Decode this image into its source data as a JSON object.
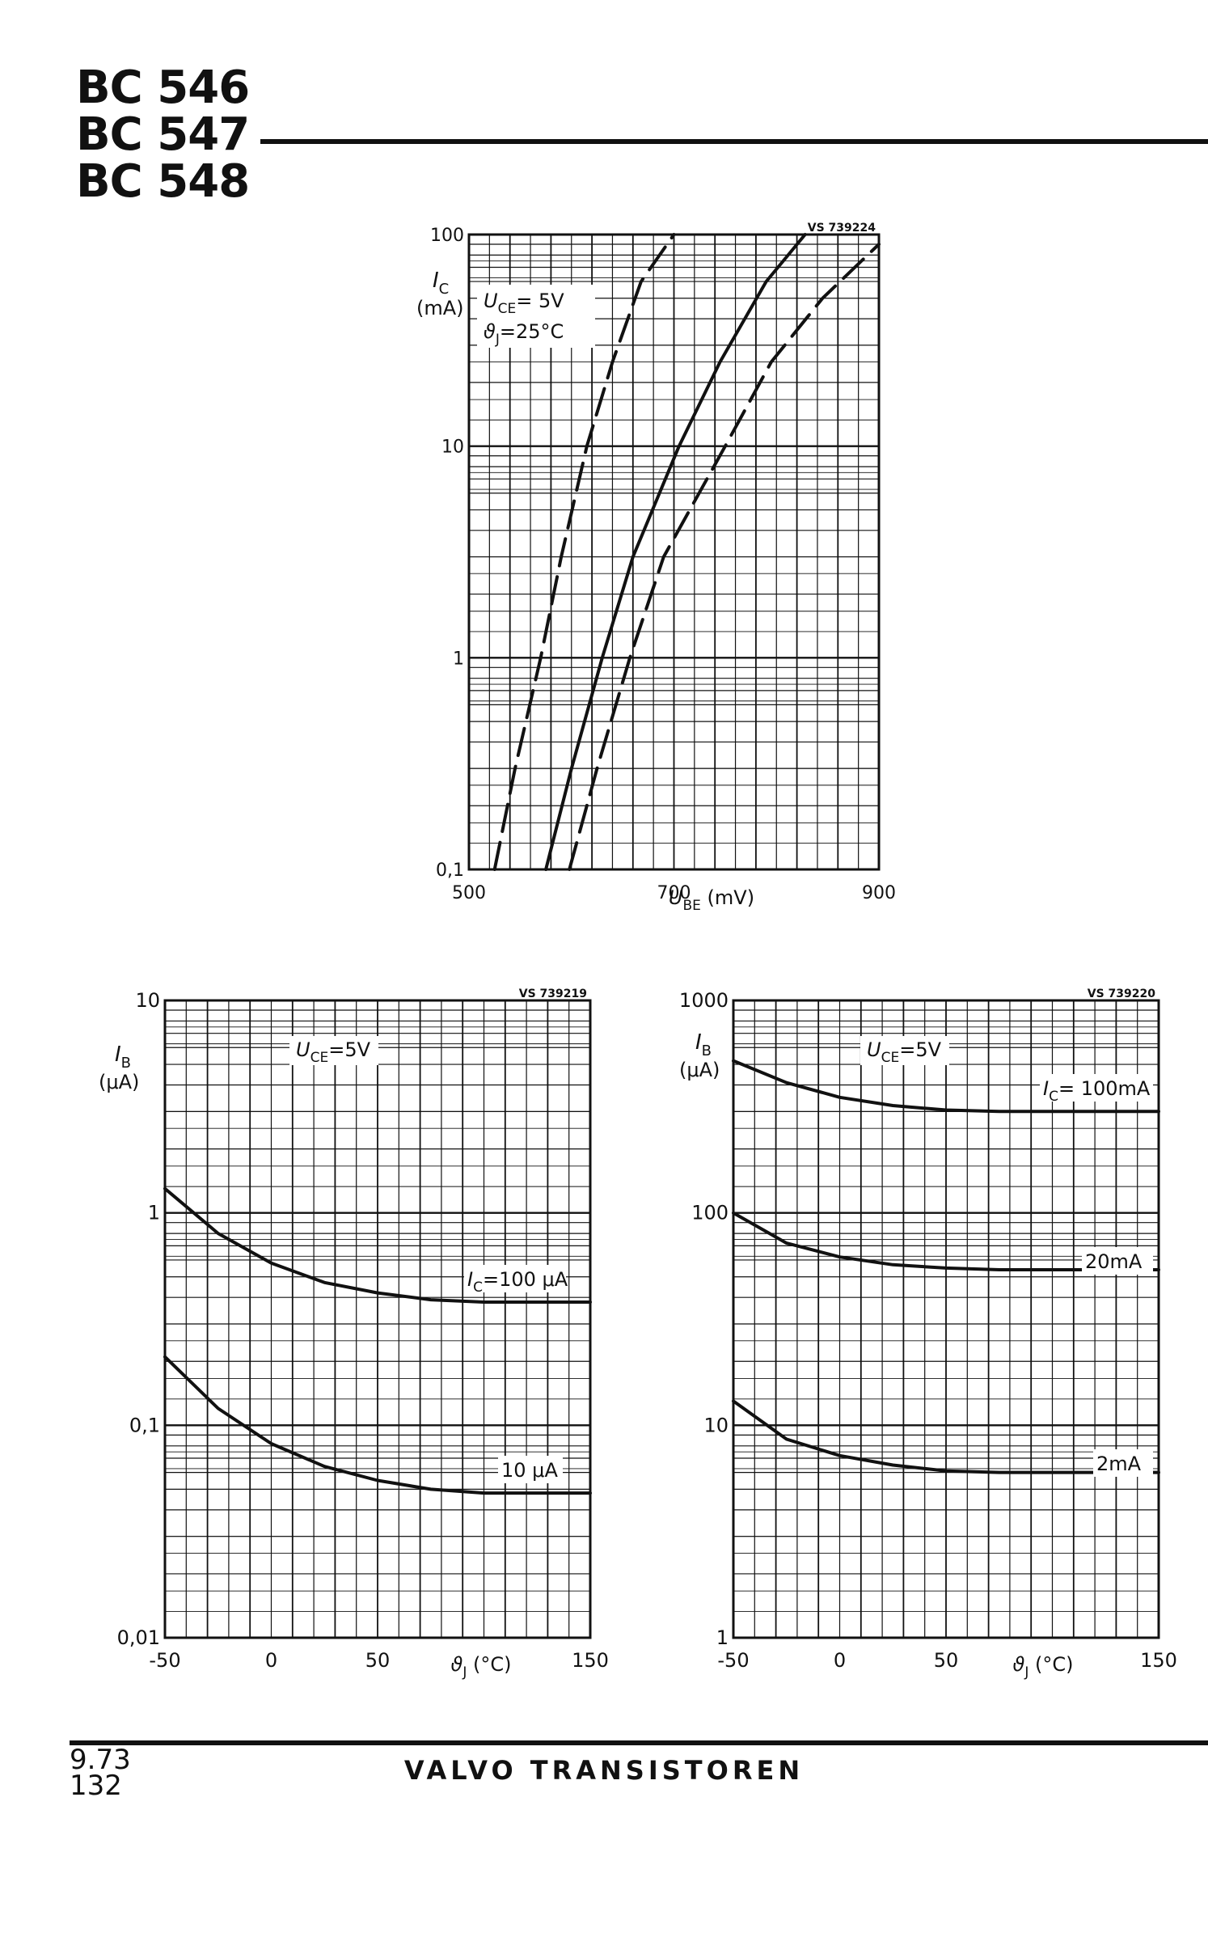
{
  "header": {
    "titles": [
      "BC 546",
      "BC 547",
      "BC 548"
    ]
  },
  "footer": {
    "date": "9.73",
    "page": "132",
    "publisher": "VALVO TRANSISTOREN"
  },
  "chart_data": [
    {
      "type": "line",
      "ref": "VS 739224",
      "yscale": "log",
      "xlim": [
        500,
        900
      ],
      "ylim": [
        0.1,
        100
      ],
      "grid": true,
      "xlabel_sym": "U",
      "xlabel_sub": "BE",
      "xlabel_unit": "(mV)",
      "ylabel_sym": "I",
      "ylabel_sub": "C",
      "ylabel_unit": "(mA)",
      "xticks": [
        "500",
        "700",
        "900"
      ],
      "yticks": [
        "0,1",
        "1",
        "10",
        "100"
      ],
      "annotations": [
        {
          "sym": "U",
          "sub": "CE",
          "text": "=  5V"
        },
        {
          "sym": "ϑ",
          "sub": "J",
          "text": "=25°C"
        }
      ],
      "series": [
        {
          "style": "dashed",
          "x": [
            525,
            545,
            570,
            590,
            615,
            640,
            668,
            700
          ],
          "y": [
            0.1,
            0.3,
            1,
            3,
            10,
            25,
            60,
            100
          ]
        },
        {
          "style": "solid",
          "x": [
            575,
            600,
            630,
            660,
            705,
            745,
            790,
            828
          ],
          "y": [
            0.1,
            0.3,
            1,
            3,
            10,
            25,
            60,
            100
          ]
        },
        {
          "style": "dashed",
          "x": [
            598,
            625,
            657,
            690,
            750,
            795,
            845,
            900
          ],
          "y": [
            0.1,
            0.3,
            1,
            3,
            10,
            25,
            50,
            90
          ]
        }
      ]
    },
    {
      "type": "line",
      "ref": "VS 739219",
      "yscale": "log",
      "xlim": [
        -50,
        150
      ],
      "ylim": [
        0.01,
        10
      ],
      "grid": true,
      "xlabel_sym": "ϑ",
      "xlabel_sub": "J",
      "xlabel_unit": "(°C)",
      "ylabel_sym": "I",
      "ylabel_sub": "B",
      "ylabel_unit": "(μA)",
      "xticks": [
        "-50",
        "0",
        "50",
        "150"
      ],
      "yticks": [
        "0,01",
        "0,1",
        "1",
        "10"
      ],
      "annotations": [
        {
          "sym": "U",
          "sub": "CE",
          "text": "=5V"
        }
      ],
      "series": [
        {
          "label_sym": "I",
          "label_sub": "C",
          "label": "=100 μA",
          "x": [
            -50,
            -25,
            0,
            25,
            50,
            75,
            100,
            125,
            150
          ],
          "y": [
            1.3,
            0.8,
            0.58,
            0.47,
            0.42,
            0.39,
            0.38,
            0.38,
            0.38
          ]
        },
        {
          "label": "10 μA",
          "x": [
            -50,
            -25,
            0,
            25,
            50,
            75,
            100,
            125,
            150
          ],
          "y": [
            0.21,
            0.12,
            0.082,
            0.064,
            0.055,
            0.05,
            0.048,
            0.048,
            0.048
          ]
        }
      ]
    },
    {
      "type": "line",
      "ref": "VS 739220",
      "yscale": "log",
      "xlim": [
        -50,
        150
      ],
      "ylim": [
        1,
        1000
      ],
      "grid": true,
      "xlabel_sym": "ϑ",
      "xlabel_sub": "J",
      "xlabel_unit": "(°C)",
      "ylabel_sym": "I",
      "ylabel_sub": "B",
      "ylabel_unit": "(μA)",
      "xticks": [
        "-50",
        "0",
        "50",
        "150"
      ],
      "yticks": [
        "1",
        "10",
        "100",
        "1000"
      ],
      "annotations": [
        {
          "sym": "U",
          "sub": "CE",
          "text": "=5V"
        }
      ],
      "series": [
        {
          "label_sym": "I",
          "label_sub": "C",
          "label": "= 100mA",
          "x": [
            -50,
            -25,
            0,
            25,
            50,
            75,
            100,
            125,
            150
          ],
          "y": [
            520,
            410,
            350,
            320,
            305,
            300,
            300,
            300,
            300
          ]
        },
        {
          "label": "20mA",
          "x": [
            -50,
            -25,
            0,
            25,
            50,
            75,
            100,
            125,
            150
          ],
          "y": [
            100,
            72,
            62,
            57,
            55,
            54,
            54,
            54,
            54
          ]
        },
        {
          "label": "2mA",
          "x": [
            -50,
            -25,
            0,
            25,
            50,
            75,
            100,
            125,
            150
          ],
          "y": [
            13,
            8.6,
            7.2,
            6.5,
            6.1,
            6.0,
            6.0,
            6.0,
            6.0
          ]
        }
      ]
    }
  ]
}
